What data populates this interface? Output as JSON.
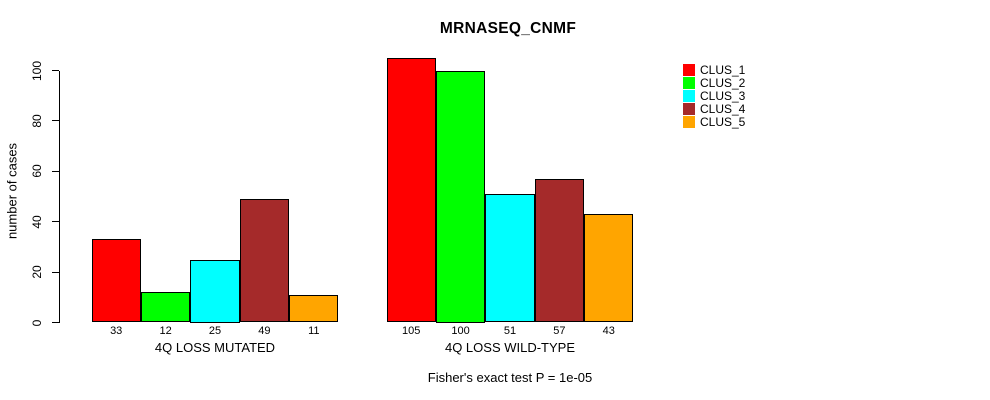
{
  "chart_data": {
    "type": "bar",
    "title": "MRNASEQ_CNMF",
    "ylabel": "number of cases",
    "xlabel": "",
    "yticks": [
      0,
      20,
      40,
      60,
      80,
      100
    ],
    "ylim": [
      0,
      105
    ],
    "grid": false,
    "legend_position": "right",
    "series": [
      "CLUS_1",
      "CLUS_2",
      "CLUS_3",
      "CLUS_4",
      "CLUS_5"
    ],
    "series_colors": [
      "#FF0000",
      "#00FF00",
      "#00FFFF",
      "#A52A2A",
      "#FFA500"
    ],
    "groups": [
      {
        "label": "4Q LOSS MUTATED",
        "values": [
          33,
          12,
          25,
          49,
          11
        ]
      },
      {
        "label": "4Q LOSS WILD-TYPE",
        "values": [
          105,
          100,
          51,
          57,
          43
        ]
      }
    ],
    "footnote": "Fisher's exact test P = 1e-05",
    "bar_border_color": "#000000",
    "text_color": "#000000",
    "background": "#FFFFFF"
  }
}
